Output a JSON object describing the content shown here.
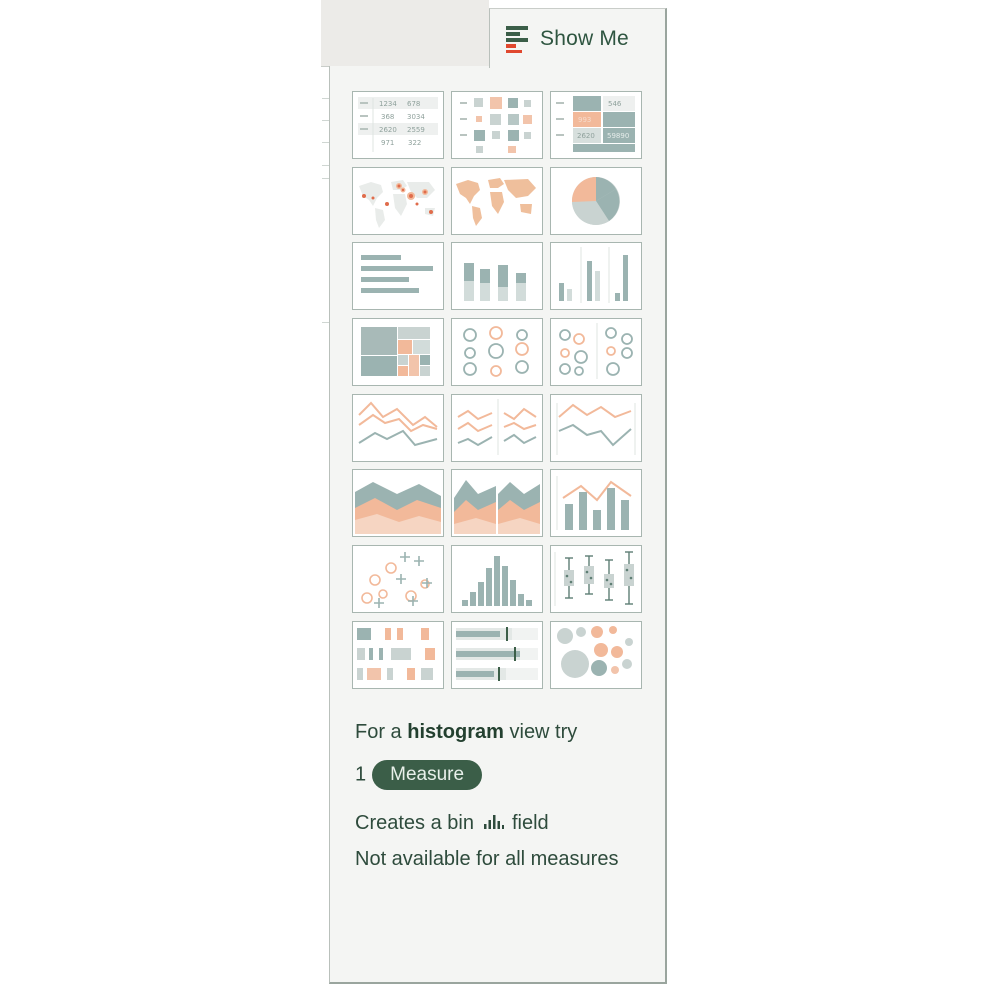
{
  "tab": {
    "label": "Show Me",
    "icon": "show-me-icon"
  },
  "chart_types": [
    "text-table",
    "heat-map",
    "highlight-table",
    "symbol-map",
    "filled-map",
    "pie-chart",
    "horizontal-bars",
    "stacked-bars",
    "side-by-side-bars",
    "treemap",
    "circle-views",
    "side-by-side-circles",
    "lines-continuous",
    "lines-discrete",
    "dual-lines",
    "area-continuous",
    "area-discrete",
    "dual-combination",
    "scatter-plot",
    "histogram",
    "box-and-whisker",
    "gantt-chart",
    "bullet-graph",
    "packed-bubbles"
  ],
  "text_table_numbers": [
    "1234",
    "678",
    "368",
    "3034",
    "2620",
    "2559",
    "971",
    "322"
  ],
  "highlight_table_numbers": [
    "546",
    "993",
    "2620",
    "59890"
  ],
  "hint": {
    "prefix": "For a ",
    "chart_name": "histogram",
    "suffix": " view try",
    "count": "1",
    "pill": "Measure",
    "line1_before": "Creates a bin",
    "line1_after": "field",
    "line2": "Not available for all measures"
  },
  "colors": {
    "teal": "#9bb3b1",
    "orange": "#f2b99a",
    "dark_green": "#3b5e48",
    "text": "#2e4b3c",
    "red_icon": "#e0482e"
  }
}
